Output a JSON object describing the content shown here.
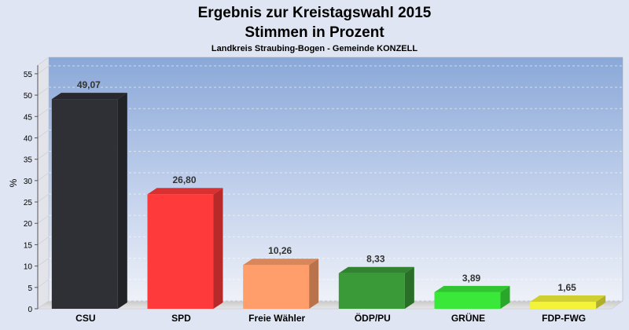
{
  "chart_data": {
    "type": "bar",
    "title": "Ergebnis zur Kreistagswahl 2015",
    "subtitle": "Stimmen in Prozent",
    "caption": "Landkreis Straubing-Bogen - Gemeinde KONZELL",
    "ylabel": "%",
    "ylim": [
      0,
      57
    ],
    "yticks": [
      0,
      5,
      10,
      15,
      20,
      25,
      30,
      35,
      40,
      45,
      50,
      55
    ],
    "grid": true,
    "categories": [
      "CSU",
      "SPD",
      "Freie Wähler",
      "ÖDP/PU",
      "GRÜNE",
      "FDP-FWG"
    ],
    "values": [
      49.07,
      26.8,
      10.26,
      8.33,
      3.89,
      1.65
    ],
    "value_labels": [
      "49,07",
      "26,80",
      "10,26",
      "8,33",
      "3,89",
      "1,65"
    ],
    "colors": [
      "#2f3035",
      "#ff3a3a",
      "#ff9e6a",
      "#3a9a38",
      "#3ae83a",
      "#f3f33a"
    ]
  }
}
